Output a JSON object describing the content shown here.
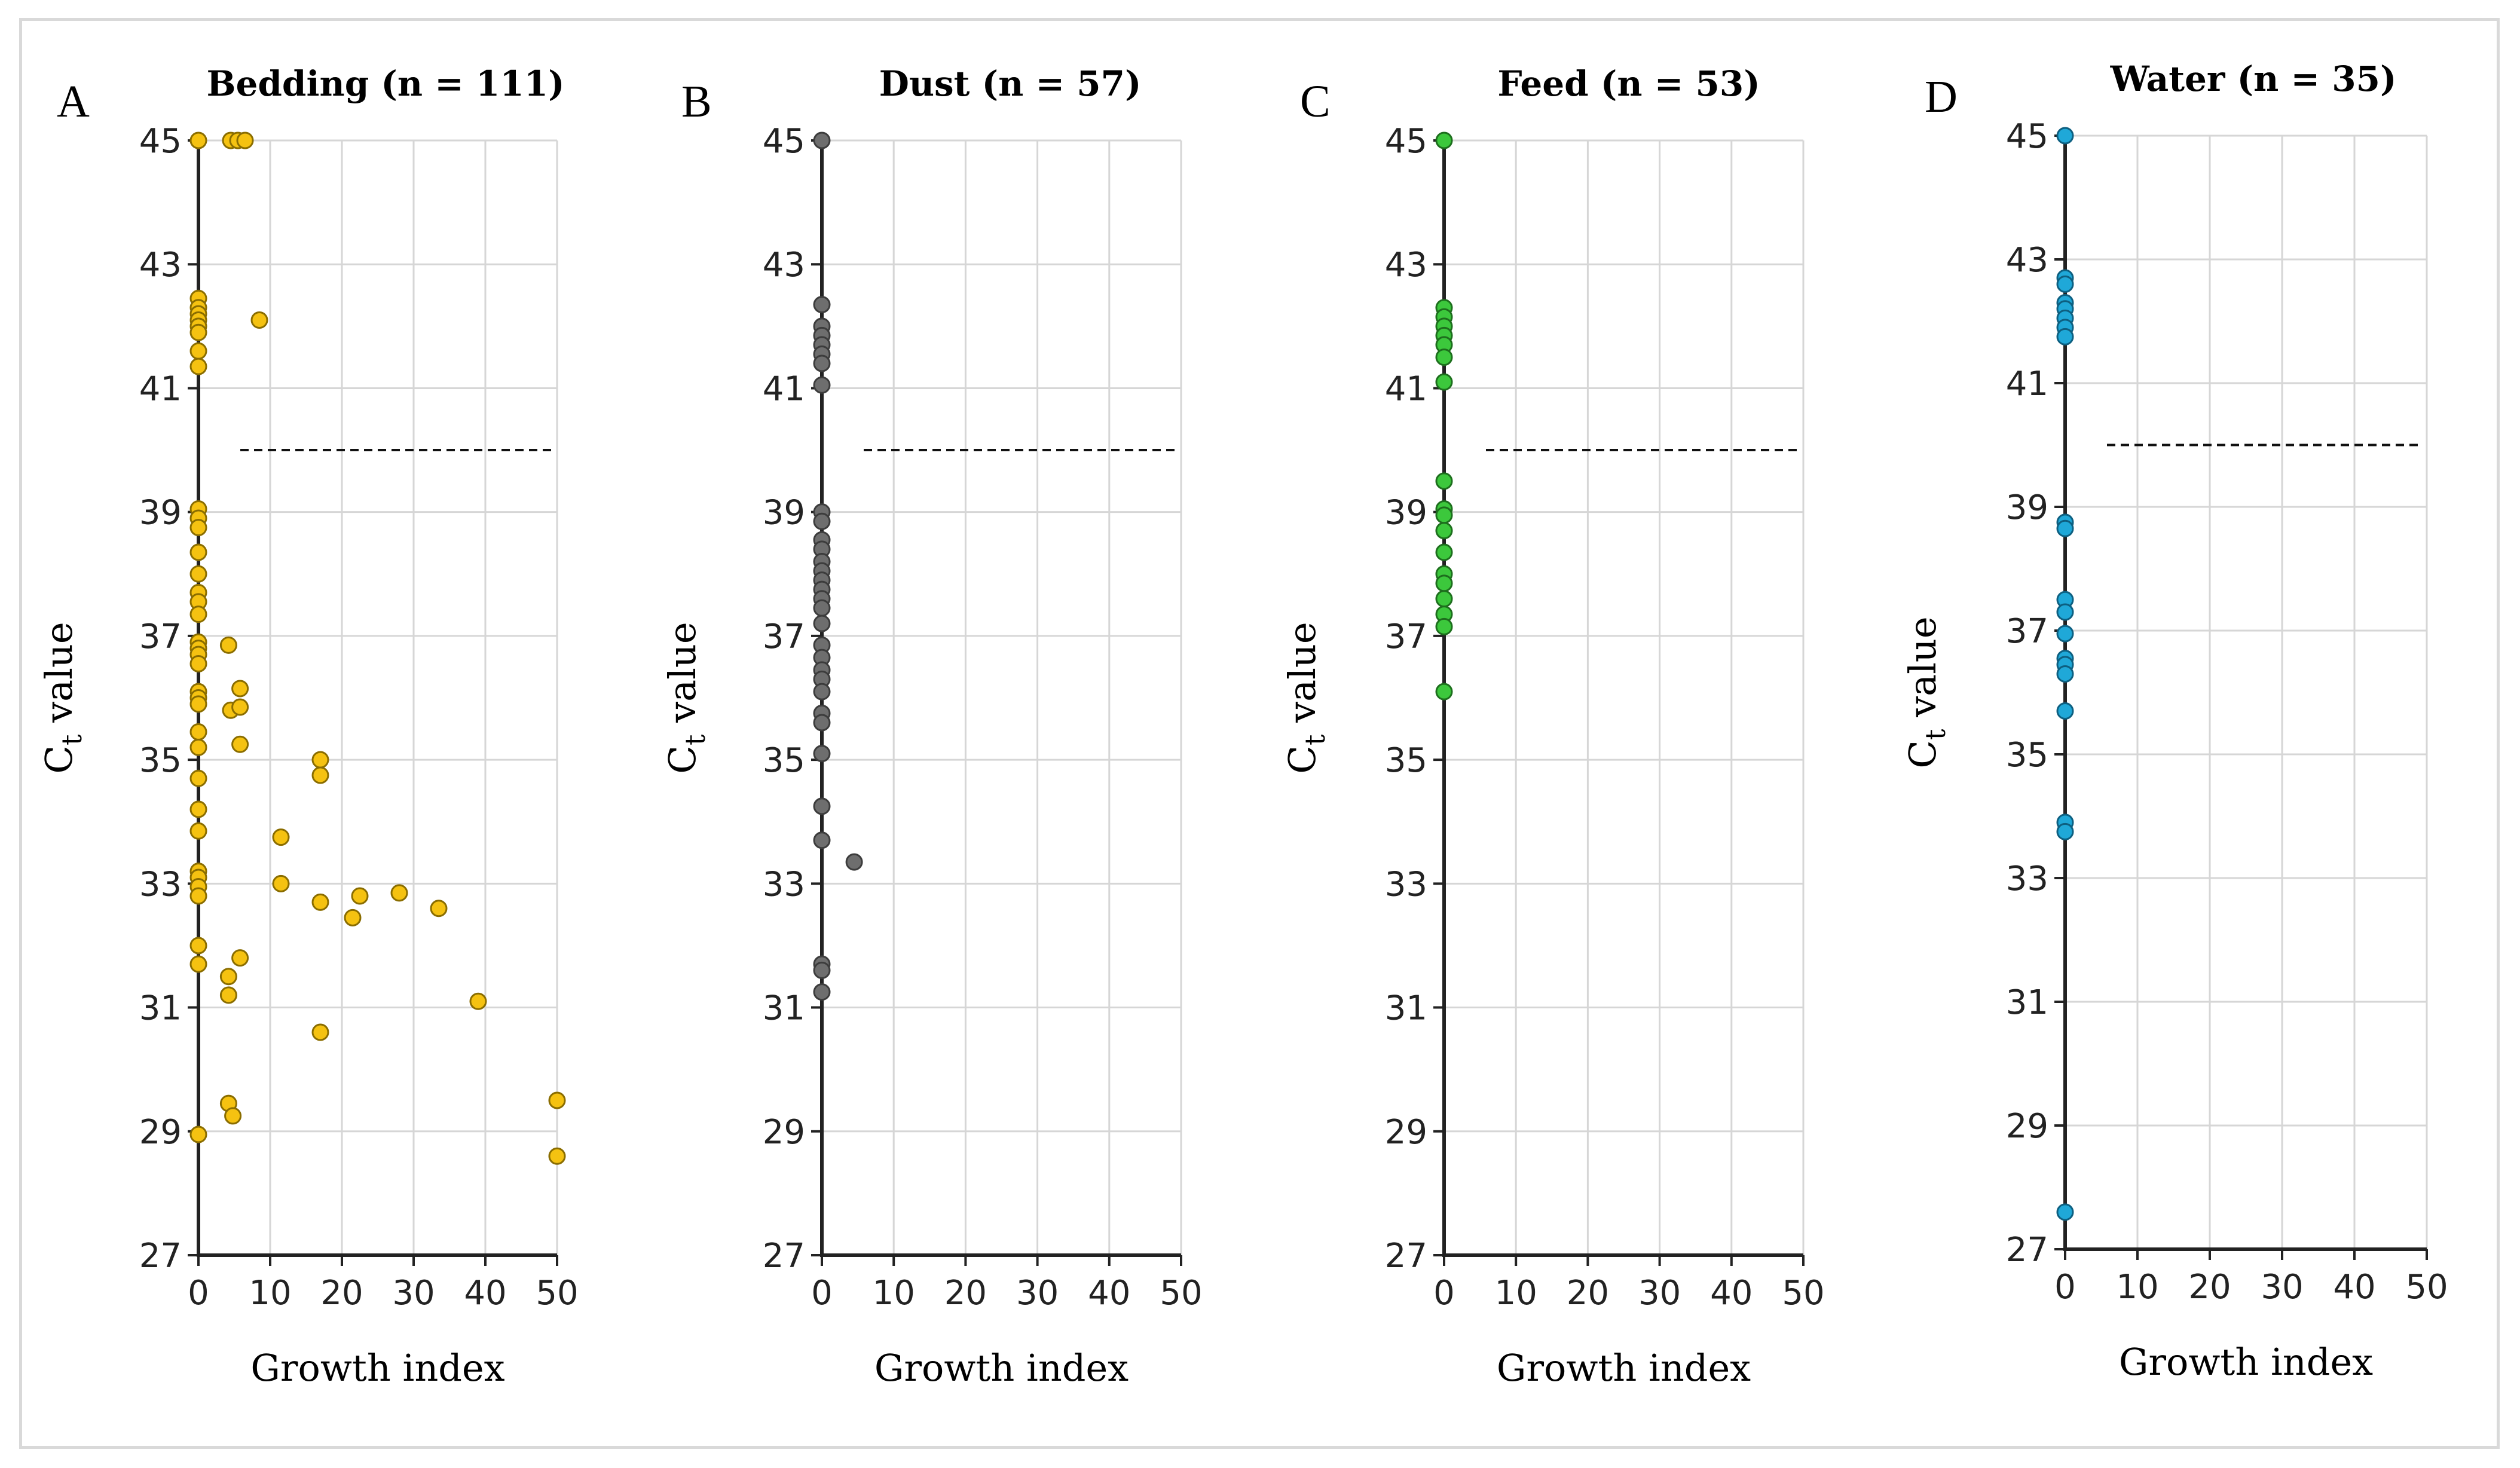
{
  "chart_data": [
    {
      "type": "scatter",
      "panel_label": "A",
      "title": "Bedding (n = 111)",
      "xlabel": "Growth index",
      "ylabel_main": "C",
      "ylabel_sub": "t",
      "ylabel_rest": " value",
      "xlim": [
        0,
        50
      ],
      "ylim": [
        27,
        45
      ],
      "xticks": [
        0,
        10,
        20,
        30,
        40,
        50
      ],
      "yticks": [
        27,
        29,
        31,
        33,
        35,
        37,
        39,
        41,
        43,
        45
      ],
      "threshold": 40,
      "color": "#f5c211",
      "stroke": "#8a6d00",
      "points": [
        [
          0,
          45
        ],
        [
          4.5,
          45
        ],
        [
          5.5,
          45
        ],
        [
          6.5,
          45
        ],
        [
          0,
          42.45
        ],
        [
          0,
          42.3
        ],
        [
          0,
          42.2
        ],
        [
          0,
          42.1
        ],
        [
          0,
          42.0
        ],
        [
          0,
          41.9
        ],
        [
          0,
          41.6
        ],
        [
          0,
          41.35
        ],
        [
          8.5,
          42.1
        ],
        [
          0,
          39.05
        ],
        [
          0,
          38.9
        ],
        [
          0,
          38.75
        ],
        [
          0,
          38.35
        ],
        [
          0,
          38.0
        ],
        [
          0,
          37.7
        ],
        [
          0,
          37.55
        ],
        [
          0,
          37.35
        ],
        [
          0,
          36.9
        ],
        [
          0,
          36.8
        ],
        [
          0,
          36.7
        ],
        [
          0,
          36.55
        ],
        [
          0,
          36.1
        ],
        [
          0,
          36.0
        ],
        [
          0,
          35.9
        ],
        [
          0,
          35.45
        ],
        [
          0,
          35.2
        ],
        [
          0,
          34.7
        ],
        [
          0,
          34.2
        ],
        [
          0,
          33.85
        ],
        [
          0,
          33.2
        ],
        [
          0,
          33.1
        ],
        [
          0,
          32.95
        ],
        [
          0,
          32.8
        ],
        [
          0,
          32.0
        ],
        [
          0,
          31.7
        ],
        [
          0,
          28.95
        ],
        [
          4.2,
          36.85
        ],
        [
          5.8,
          36.15
        ],
        [
          4.5,
          35.8
        ],
        [
          5.8,
          35.85
        ],
        [
          5.8,
          35.25
        ],
        [
          17,
          35.0
        ],
        [
          17,
          34.75
        ],
        [
          11.5,
          33.75
        ],
        [
          11.5,
          33.0
        ],
        [
          17,
          32.7
        ],
        [
          22.5,
          32.8
        ],
        [
          21.5,
          32.45
        ],
        [
          28,
          32.85
        ],
        [
          33.5,
          32.6
        ],
        [
          5.8,
          31.8
        ],
        [
          4.2,
          31.5
        ],
        [
          4.2,
          31.2
        ],
        [
          17,
          30.6
        ],
        [
          39,
          31.1
        ],
        [
          4.2,
          29.45
        ],
        [
          4.8,
          29.25
        ],
        [
          50,
          29.5
        ],
        [
          50,
          28.6
        ]
      ]
    },
    {
      "type": "scatter",
      "panel_label": "B",
      "title": "Dust (n = 57)",
      "xlabel": "Growth index",
      "ylabel_main": "C",
      "ylabel_sub": "t",
      "ylabel_rest": " value",
      "xlim": [
        0,
        50
      ],
      "ylim": [
        27,
        45
      ],
      "xticks": [
        0,
        10,
        20,
        30,
        40,
        50
      ],
      "yticks": [
        27,
        29,
        31,
        33,
        35,
        37,
        39,
        41,
        43,
        45
      ],
      "threshold": 40,
      "color": "#6e6e6e",
      "stroke": "#3c3c3c",
      "points": [
        [
          0,
          45
        ],
        [
          0,
          42.35
        ],
        [
          0,
          42.0
        ],
        [
          0,
          41.85
        ],
        [
          0,
          41.7
        ],
        [
          0,
          41.55
        ],
        [
          0,
          41.4
        ],
        [
          0,
          41.05
        ],
        [
          0,
          39.0
        ],
        [
          0,
          38.85
        ],
        [
          0,
          38.55
        ],
        [
          0,
          38.4
        ],
        [
          0,
          38.2
        ],
        [
          0,
          38.05
        ],
        [
          0,
          37.9
        ],
        [
          0,
          37.75
        ],
        [
          0,
          37.6
        ],
        [
          0,
          37.45
        ],
        [
          0,
          37.2
        ],
        [
          0,
          36.85
        ],
        [
          0,
          36.65
        ],
        [
          0,
          36.45
        ],
        [
          0,
          36.3
        ],
        [
          0,
          36.1
        ],
        [
          0,
          35.75
        ],
        [
          0,
          35.6
        ],
        [
          0,
          35.1
        ],
        [
          0,
          34.25
        ],
        [
          0,
          33.7
        ],
        [
          4.5,
          33.35
        ],
        [
          0,
          31.7
        ],
        [
          0,
          31.6
        ],
        [
          0,
          31.25
        ]
      ]
    },
    {
      "type": "scatter",
      "panel_label": "C",
      "title": "Feed (n = 53)",
      "xlabel": "Growth index",
      "ylabel_main": "C",
      "ylabel_sub": "t",
      "ylabel_rest": " value",
      "xlim": [
        0,
        50
      ],
      "ylim": [
        27,
        45
      ],
      "xticks": [
        0,
        10,
        20,
        30,
        40,
        50
      ],
      "yticks": [
        27,
        29,
        31,
        33,
        35,
        37,
        39,
        41,
        43,
        45
      ],
      "threshold": 40,
      "color": "#3cc83c",
      "stroke": "#1d6e1d",
      "points": [
        [
          0,
          45
        ],
        [
          0,
          42.3
        ],
        [
          0,
          42.15
        ],
        [
          0,
          42.0
        ],
        [
          0,
          41.85
        ],
        [
          0,
          41.7
        ],
        [
          0,
          41.5
        ],
        [
          0,
          41.1
        ],
        [
          0,
          39.5
        ],
        [
          0,
          39.05
        ],
        [
          0,
          38.95
        ],
        [
          0,
          38.7
        ],
        [
          0,
          38.35
        ],
        [
          0,
          38.0
        ],
        [
          0,
          37.85
        ],
        [
          0,
          37.6
        ],
        [
          0,
          37.35
        ],
        [
          0,
          37.15
        ],
        [
          0,
          36.1
        ]
      ]
    },
    {
      "type": "scatter",
      "panel_label": "D",
      "title": "Water (n = 35)",
      "xlabel": "Growth index",
      "ylabel_main": "C",
      "ylabel_sub": "t",
      "ylabel_rest": " value",
      "xlim": [
        0,
        50
      ],
      "ylim": [
        27,
        45
      ],
      "xticks": [
        0,
        10,
        20,
        30,
        40,
        50
      ],
      "yticks": [
        27,
        29,
        31,
        33,
        35,
        37,
        39,
        41,
        43,
        45
      ],
      "threshold": 40,
      "color": "#1fa8d8",
      "stroke": "#0d5f80",
      "points": [
        [
          0,
          45
        ],
        [
          0,
          42.7
        ],
        [
          0,
          42.6
        ],
        [
          0,
          42.3
        ],
        [
          0,
          42.2
        ],
        [
          0,
          42.05
        ],
        [
          0,
          41.9
        ],
        [
          0,
          41.75
        ],
        [
          0,
          38.75
        ],
        [
          0,
          38.65
        ],
        [
          0,
          37.5
        ],
        [
          0,
          37.3
        ],
        [
          0,
          36.95
        ],
        [
          0,
          36.55
        ],
        [
          0,
          36.45
        ],
        [
          0,
          36.3
        ],
        [
          0,
          35.7
        ],
        [
          0,
          33.9
        ],
        [
          0,
          33.75
        ],
        [
          0,
          27.6
        ]
      ]
    }
  ]
}
